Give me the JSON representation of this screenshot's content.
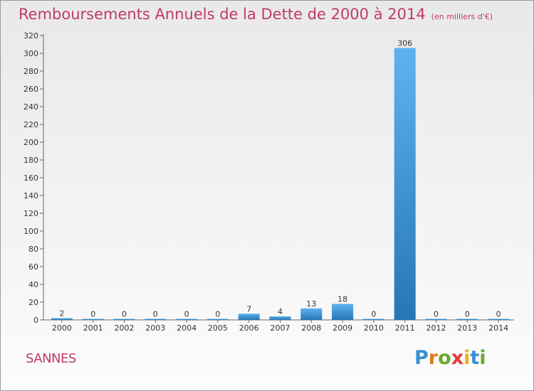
{
  "header": {
    "title": "Remboursements Annuels de la Dette de 2000 à 2014",
    "unit": "(en milliers d'€)"
  },
  "town": "SANNES",
  "logo_letters": [
    "P",
    "r",
    "o",
    "x",
    "i",
    "t",
    "i"
  ],
  "colors": {
    "title": "#c03a6b",
    "bar_top": "#5eb3ee",
    "bar_bottom": "#2676b4"
  },
  "chart_data": {
    "type": "bar",
    "title": "Remboursements Annuels de la Dette de 2000 à 2014",
    "xlabel": "",
    "ylabel": "",
    "categories": [
      "2000",
      "2001",
      "2002",
      "2003",
      "2004",
      "2005",
      "2006",
      "2007",
      "2008",
      "2009",
      "2010",
      "2011",
      "2012",
      "2013",
      "2014"
    ],
    "values": [
      2,
      0,
      0,
      0,
      0,
      0,
      7,
      4,
      13,
      18,
      0,
      306,
      0,
      0,
      0
    ],
    "ylim": [
      0,
      320
    ],
    "yticks": [
      0,
      20,
      40,
      60,
      80,
      100,
      120,
      140,
      160,
      180,
      200,
      220,
      240,
      260,
      280,
      300,
      320
    ],
    "grid": false,
    "legend": "none"
  }
}
